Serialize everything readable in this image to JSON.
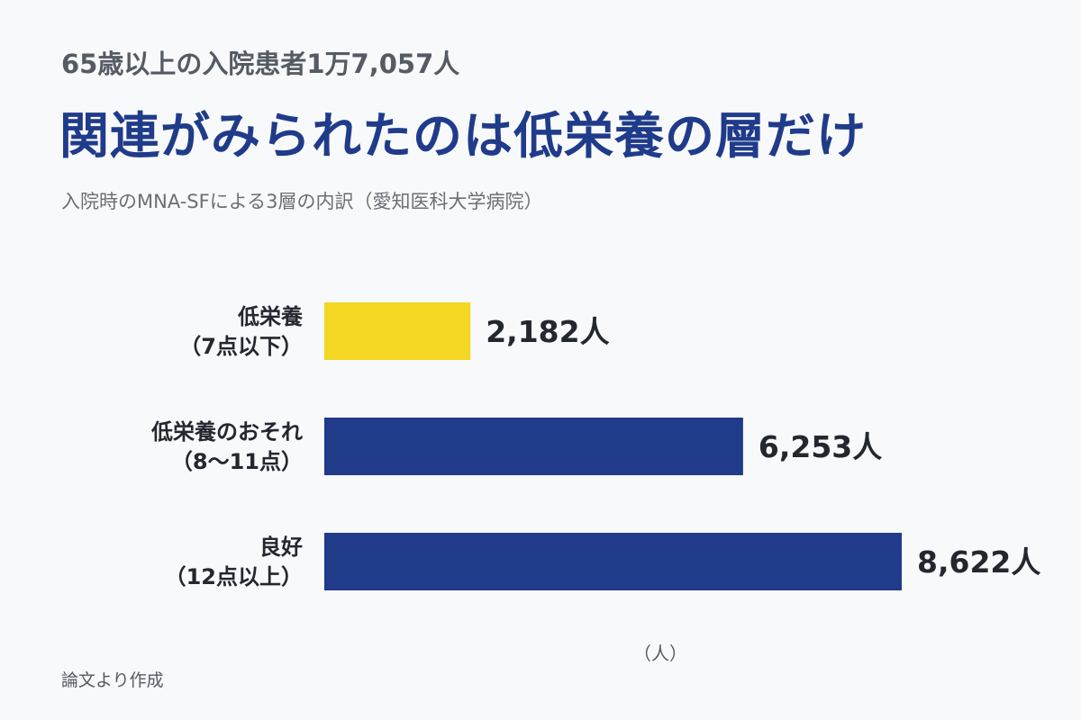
{
  "header": {
    "supertitle": "65歳以上の入院患者1万7,057人",
    "title": "関連がみられたのは低栄養の層だけ",
    "subtitle": "入院時のMNA-SFによる3層の内訳（愛知医科大学病院）"
  },
  "footer": {
    "source": "論文より作成"
  },
  "chart_data": {
    "type": "bar",
    "orientation": "horizontal",
    "categories": [
      [
        "低栄養",
        "（7点以下）"
      ],
      [
        "低栄養のおそれ",
        "（8〜11点）"
      ],
      [
        "良好",
        "（12点以上）"
      ]
    ],
    "values": [
      2182,
      6253,
      8622
    ],
    "value_labels": [
      "2,182人",
      "6,253人",
      "8,622人"
    ],
    "colors": [
      "#f4d723",
      "#1f3b8a",
      "#1f3b8a"
    ],
    "xlim": [
      0,
      8622
    ],
    "unit_label": "（人）",
    "grid": false,
    "legend": "none"
  }
}
